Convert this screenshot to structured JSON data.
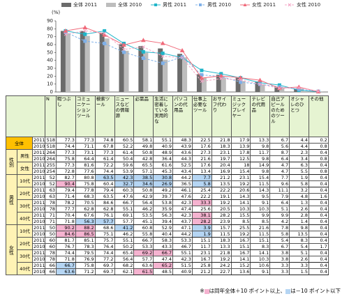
{
  "chart_data": {
    "type": "bar",
    "y_label": "(%)",
    "ylim": [
      0,
      90
    ],
    "yticks": [
      0,
      10,
      20,
      30,
      40,
      50,
      60,
      70,
      80,
      90
    ],
    "categories": [
      "暇つぶし",
      "コミュニケーションツール",
      "検索ツール",
      "ニュースなどの情報源",
      "必需品",
      "生活に密着している実用的な",
      "パソコンの代用品",
      "仕事上必要なツール",
      "おサイフ代わり",
      "ミュージックプレイヤー",
      "テレビの代用品",
      "自己アピールのためのツール",
      "オシャレのひとつ",
      "その他"
    ],
    "series": [
      {
        "name": "全体 2011",
        "type": "bar",
        "color": "#6b6b6b",
        "values": [
          77.3,
          77.3,
          74.8,
          60.5,
          58.1,
          55.1,
          48.3,
          22.5,
          21.8,
          17.9,
          13.3,
          6.7,
          4.4,
          0.2
        ]
      },
      {
        "name": "全体 2010",
        "type": "bar",
        "color": "#bdbdbd",
        "values": [
          74.4,
          71.1,
          67.8,
          52.2,
          49.8,
          40.9,
          43.9,
          17.6,
          18.3,
          13.9,
          9.8,
          5.6,
          4.4,
          0.8
        ]
      },
      {
        "name": "男性 2011",
        "type": "line",
        "color": "#1fb5c9",
        "marker": "square",
        "dashed": false,
        "values": [
          77.3,
          73.1,
          77.3,
          61.4,
          50.8,
          48.9,
          43.6,
          27.3,
          23.1,
          17.8,
          11.7,
          8.7,
          2.3,
          0.4
        ]
      },
      {
        "name": "男性 2010",
        "type": "line",
        "color": "#7fb0e8",
        "marker": "square",
        "dashed": true,
        "values": [
          75.8,
          64.4,
          61.4,
          50.4,
          42.8,
          36.4,
          44.3,
          21.6,
          19.7,
          12.5,
          9.8,
          6.4,
          3.4,
          0.8
        ]
      },
      {
        "name": "女性 2011",
        "type": "line",
        "color": "#f06a7a",
        "marker": "triangle",
        "dashed": false,
        "values": [
          77.3,
          81.6,
          72.2,
          59.6,
          65.5,
          61.6,
          52.5,
          17.6,
          20.4,
          18.0,
          14.9,
          4.7,
          6.3,
          0.4
        ]
      },
      {
        "name": "女性 2010",
        "type": "line",
        "color": "#f4a6c6",
        "marker": "cross",
        "dashed": true,
        "values": [
          72.8,
          77.6,
          74.4,
          53.9,
          57.1,
          45.3,
          43.4,
          13.4,
          16.9,
          15.4,
          9.8,
          4.7,
          5.5,
          0.8
        ]
      }
    ]
  },
  "table": {
    "n_label": "N",
    "threshold": 10,
    "high_color": "#f5b3d0",
    "low_color": "#b5d5f3",
    "sections": [
      {
        "items": [
          {
            "label": "全体",
            "years": [
              {
                "year": "2011",
                "n": 518,
                "values": [
                  77.3,
                  77.3,
                  74.8,
                  60.5,
                  58.1,
                  55.1,
                  48.3,
                  22.5,
                  21.8,
                  17.9,
                  13.3,
                  6.7,
                  4.4,
                  0.2
                ]
              },
              {
                "year": "2010",
                "n": 518,
                "values": [
                  74.4,
                  71.1,
                  67.8,
                  52.2,
                  49.8,
                  40.9,
                  43.9,
                  17.6,
                  18.3,
                  13.9,
                  9.8,
                  5.6,
                  4.4,
                  0.8
                ]
              }
            ]
          }
        ]
      },
      {
        "label": "性別",
        "items": [
          {
            "label": "男性",
            "years": [
              {
                "year": "2011",
                "n": 264,
                "values": [
                  77.3,
                  73.1,
                  77.3,
                  61.4,
                  50.8,
                  48.9,
                  43.6,
                  27.3,
                  23.1,
                  17.8,
                  11.7,
                  8.7,
                  2.3,
                  0.4
                ]
              },
              {
                "year": "2010",
                "n": 264,
                "values": [
                  75.8,
                  64.4,
                  61.4,
                  50.4,
                  42.8,
                  36.4,
                  44.3,
                  21.6,
                  19.7,
                  12.5,
                  9.8,
                  6.4,
                  3.4,
                  0.8
                ]
              }
            ]
          },
          {
            "label": "女性",
            "years": [
              {
                "year": "2011",
                "n": 255,
                "values": [
                  77.3,
                  81.6,
                  72.2,
                  59.6,
                  65.5,
                  61.6,
                  52.5,
                  17.6,
                  20.4,
                  18.0,
                  14.9,
                  4.7,
                  6.3,
                  0.4
                ]
              },
              {
                "year": "2010",
                "n": 254,
                "values": [
                  72.8,
                  77.6,
                  74.4,
                  53.9,
                  57.1,
                  45.3,
                  43.4,
                  13.4,
                  16.9,
                  15.4,
                  9.8,
                  4.7,
                  5.5,
                  0.8
                ]
              }
            ]
          }
        ]
      },
      {
        "label": "男性",
        "items": [
          {
            "label": "10代",
            "years": [
              {
                "year": "2011",
                "n": 52,
                "values": [
                  82.7,
                  80.8,
                  63.5,
                  42.3,
                  38.5,
                  30.8,
                  44.2,
                  7.7,
                  21.2,
                  23.1,
                  15.4,
                  7.7,
                  1.9,
                  0.4
                ]
              },
              {
                "year": "2010",
                "n": 52,
                "values": [
                  90.4,
                  75.8,
                  60.4,
                  32.7,
                  34.6,
                  26.9,
                  36.5,
                  5.8,
                  13.5,
                  19.2,
                  11.5,
                  9.6,
                  5.8,
                  0.4
                ]
              }
            ]
          },
          {
            "label": "20代",
            "years": [
              {
                "year": "2011",
                "n": 63,
                "values": [
                  79.4,
                  77.8,
                  79.4,
                  60.3,
                  50.8,
                  49.2,
                  46.1,
                  25.4,
                  22.2,
                  20.6,
                  14.3,
                  11.1,
                  3.2,
                  0.4
                ]
              },
              {
                "year": "2010",
                "n": 63,
                "values": [
                  71.4,
                  68.3,
                  63.5,
                  47.6,
                  42.9,
                  39.7,
                  47.6,
                  22.2,
                  19.1,
                  14.3,
                  9.5,
                  7.9,
                  4.8,
                  1.6
                ]
              }
            ]
          },
          {
            "label": "30代",
            "years": [
              {
                "year": "2011",
                "n": 78,
                "values": [
                  78.2,
                  70.5,
                  84.6,
                  66.7,
                  56.4,
                  53.8,
                  42.3,
                  33.3,
                  19.2,
                  14.1,
                  9.1,
                  6.4,
                  1.3,
                  0.4
                ]
              },
              {
                "year": "2010",
                "n": 78,
                "values": [
                  77.7,
                  62.8,
                  62.8,
                  55.1,
                  46.2,
                  35.9,
                  47.4,
                  25.6,
                  20.5,
                  10.3,
                  10.3,
                  5.1,
                  2.6,
                  0.4
                ]
              }
            ]
          },
          {
            "label": "40代",
            "years": [
              {
                "year": "2011",
                "n": 71,
                "values": [
                  70.4,
                  67.6,
                  76.1,
                  69.1,
                  53.5,
                  56.3,
                  42.3,
                  38.1,
                  28.2,
                  15.5,
                  9.9,
                  9.9,
                  2.8,
                  0.4
                ]
              },
              {
                "year": "2010",
                "n": 71,
                "values": [
                  71.8,
                  56.3,
                  57.7,
                  57.7,
                  45.1,
                  39.4,
                  43.7,
                  28.2,
                  23.9,
                  8.5,
                  8.5,
                  4.2,
                  1.4,
                  0.4
                ]
              }
            ]
          }
        ]
      },
      {
        "label": "女性",
        "items": [
          {
            "label": "10代",
            "years": [
              {
                "year": "2011",
                "n": 50,
                "values": [
                  90.2,
                  88.2,
                  68.6,
                  41.2,
                  60.8,
                  52.9,
                  47.1,
                  3.9,
                  15.7,
                  25.5,
                  21.6,
                  7.8,
                  9.8,
                  0.4
                ]
              },
              {
                "year": "2010",
                "n": 50,
                "values": [
                  84.6,
                  86.5,
                  75.1,
                  46.2,
                  55.8,
                  40.4,
                  44.2,
                  1.9,
                  11.5,
                  19.2,
                  11.5,
                  5.8,
                  13.5,
                  0.4
                ]
              }
            ]
          },
          {
            "label": "20代",
            "years": [
              {
                "year": "2011",
                "n": 60,
                "values": [
                  81.7,
                  85.1,
                  75.7,
                  55.1,
                  66.7,
                  58.3,
                  53.3,
                  15.1,
                  18.3,
                  16.7,
                  15.1,
                  5.4,
                  8.3,
                  0.4
                ]
              },
              {
                "year": "2010",
                "n": 60,
                "values": [
                  76.7,
                  78.3,
                  76.4,
                  50.2,
                  53.3,
                  43.3,
                  46.7,
                  11.7,
                  13.3,
                  15.1,
                  8.3,
                  6.7,
                  5.4,
                  1.7
                ]
              }
            ]
          },
          {
            "label": "30代",
            "years": [
              {
                "year": "2011",
                "n": 78,
                "values": [
                  74.4,
                  79.5,
                  74.4,
                  65.4,
                  69.2,
                  66.7,
                  55.1,
                  23.1,
                  21.8,
                  16.7,
                  14.1,
                  3.8,
                  5.1,
                  0.4
                ]
              },
              {
                "year": "2010",
                "n": 78,
                "values": [
                  71.8,
                  76.9,
                  77.2,
                  56.4,
                  57.7,
                  47.4,
                  42.3,
                  16.7,
                  19.2,
                  14.1,
                  10.3,
                  3.8,
                  2.6,
                  0.4
                ]
              }
            ]
          },
          {
            "label": "40代",
            "years": [
              {
                "year": "2011",
                "n": 66,
                "values": [
                  66.7,
                  75.8,
                  69.7,
                  68.2,
                  63.6,
                  65.2,
                  51.5,
                  25.8,
                  24.2,
                  15.2,
                  10.6,
                  3.3,
                  3.3,
                  0.4
                ]
              },
              {
                "year": "2010",
                "n": 66,
                "values": [
                  63.6,
                  71.2,
                  69.7,
                  62.1,
                  61.5,
                  48.5,
                  40.9,
                  21.2,
                  22.7,
                  13.6,
                  9.1,
                  3.3,
                  1.5,
                  0.4
                ]
              }
            ]
          }
        ]
      }
    ],
    "note": {
      "mark": "※",
      "high_text": "は同年全体＋10 ポイント以上、",
      "low_text": "は－10 ポイント以下"
    }
  }
}
